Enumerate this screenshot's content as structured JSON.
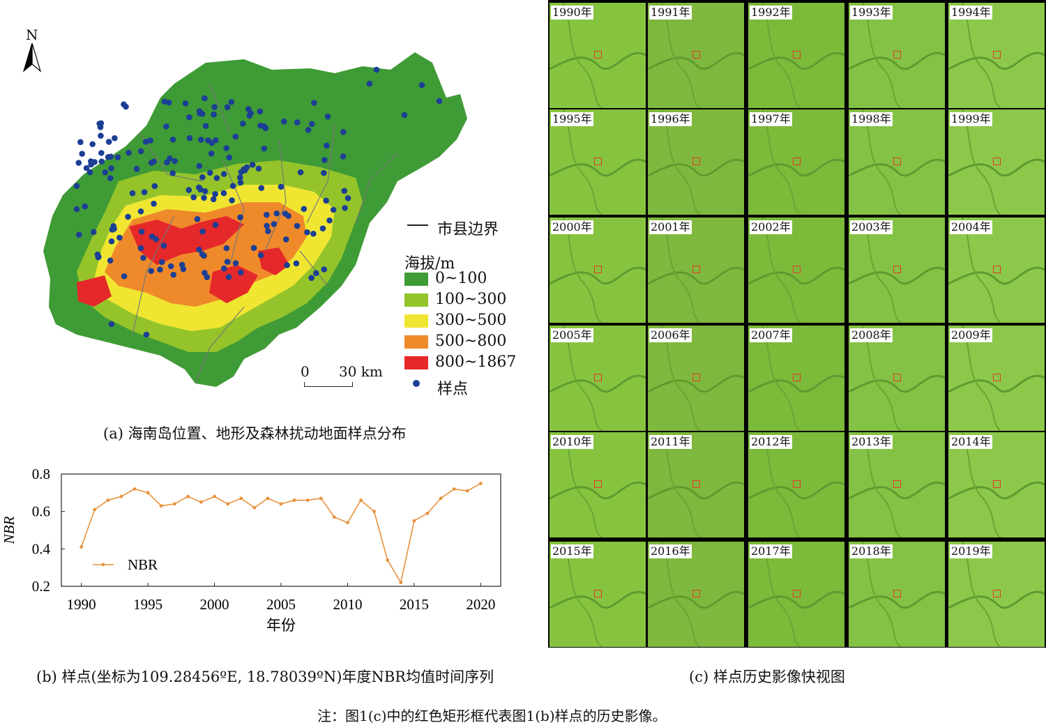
{
  "map_panel": {
    "north_label": "N",
    "scale_start": "0",
    "scale_end": "30 km",
    "legend": {
      "boundary_label": "市县边界",
      "elevation_title": "海拔/m",
      "classes": [
        {
          "label": "0~100",
          "color": "#3f9b35"
        },
        {
          "label": "100~300",
          "color": "#94c42a"
        },
        {
          "label": "300~500",
          "color": "#f0e632"
        },
        {
          "label": "500~800",
          "color": "#ef8a2a"
        },
        {
          "label": "800~1867",
          "color": "#e5282a"
        }
      ],
      "sample_label": "样点",
      "sample_color": "#1c3f95"
    },
    "caption": "(a) 海南岛位置、地形及森林扰动地面样点分布"
  },
  "chart_panel": {
    "caption": "(b) 样点(坐标为109.28456ºE, 18.78039ºN)年度NBR均值时间序列"
  },
  "chart_data": {
    "type": "line",
    "xlabel": "年份",
    "ylabel": "NBR",
    "xlim": [
      1988.5,
      2021.5
    ],
    "ylim": [
      0.2,
      0.8
    ],
    "xticks": [
      1990,
      1995,
      2000,
      2005,
      2010,
      2015,
      2020
    ],
    "yticks": [
      0.2,
      0.4,
      0.6,
      0.8
    ],
    "series": [
      {
        "name": "NBR",
        "color": "#e8913c",
        "x": [
          1990,
          1991,
          1992,
          1993,
          1994,
          1995,
          1996,
          1997,
          1998,
          1999,
          2000,
          2001,
          2002,
          2003,
          2004,
          2005,
          2006,
          2007,
          2008,
          2009,
          2010,
          2011,
          2012,
          2013,
          2014,
          2015,
          2016,
          2017,
          2018,
          2019,
          2020
        ],
        "y": [
          0.41,
          0.61,
          0.66,
          0.68,
          0.72,
          0.7,
          0.63,
          0.64,
          0.68,
          0.65,
          0.68,
          0.64,
          0.67,
          0.62,
          0.67,
          0.64,
          0.66,
          0.66,
          0.67,
          0.57,
          0.54,
          0.66,
          0.6,
          0.34,
          0.22,
          0.55,
          0.59,
          0.67,
          0.72,
          0.71,
          0.75
        ]
      }
    ],
    "legend_position": "bottom-left",
    "grid": false
  },
  "imagery_panel": {
    "tiles": [
      "1990年",
      "1991年",
      "1992年",
      "1993年",
      "1994年",
      "1995年",
      "1996年",
      "1997年",
      "1998年",
      "1999年",
      "2000年",
      "2001年",
      "2002年",
      "2003年",
      "2004年",
      "2005年",
      "2006年",
      "2007年",
      "2008年",
      "2009年",
      "2010年",
      "2011年",
      "2012年",
      "2013年",
      "2014年",
      "2015年",
      "2016年",
      "2017年",
      "2018年",
      "2019年"
    ],
    "caption": "(c) 样点历史影像快视图"
  },
  "note": "注：图1(c)中的红色矩形框代表图1(b)样点的历史影像。"
}
